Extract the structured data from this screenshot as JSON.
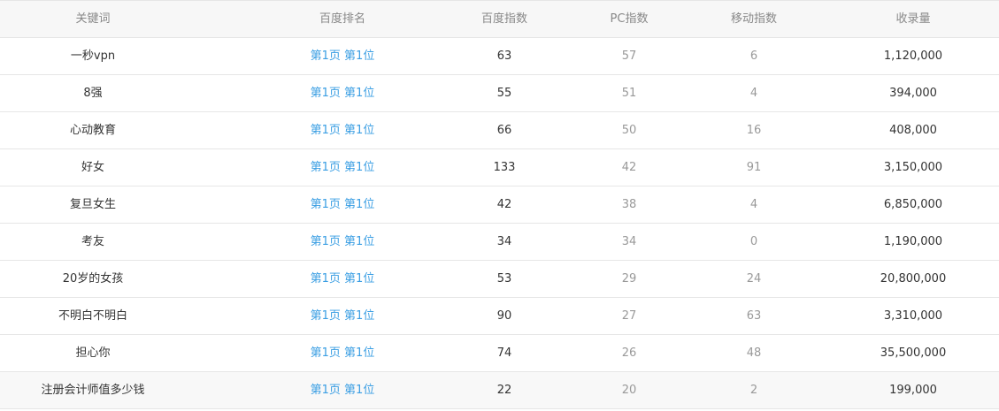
{
  "table": {
    "headers": [
      "关键词",
      "百度排名",
      "百度指数",
      "PC指数",
      "移动指数",
      "收录量"
    ],
    "rows": [
      [
        "一秒vpn",
        "第1页 第1位",
        "63",
        "57",
        "6",
        "1,120,000"
      ],
      [
        "8强",
        "第1页 第1位",
        "55",
        "51",
        "4",
        "394,000"
      ],
      [
        "心动教育",
        "第1页 第1位",
        "66",
        "50",
        "16",
        "408,000"
      ],
      [
        "好女",
        "第1页 第1位",
        "133",
        "42",
        "91",
        "3,150,000"
      ],
      [
        "复旦女生",
        "第1页 第1位",
        "42",
        "38",
        "4",
        "6,850,000"
      ],
      [
        "考友",
        "第1页 第1位",
        "34",
        "34",
        "0",
        "1,190,000"
      ],
      [
        "20岁的女孩",
        "第1页 第1位",
        "53",
        "29",
        "24",
        "20,800,000"
      ],
      [
        "不明白不明白",
        "第1页 第1位",
        "90",
        "27",
        "63",
        "3,310,000"
      ],
      [
        "担心你",
        "第1页 第1位",
        "74",
        "26",
        "48",
        "35,500,000"
      ],
      [
        "注册会计师值多少钱",
        "第1页 第1位",
        "22",
        "20",
        "2",
        "199,000"
      ]
    ],
    "hovered_row": 9,
    "colors": {
      "link": "#3a9ee3",
      "header_bg": "#f7f7f7",
      "muted": "#999999",
      "text": "#333333"
    }
  }
}
